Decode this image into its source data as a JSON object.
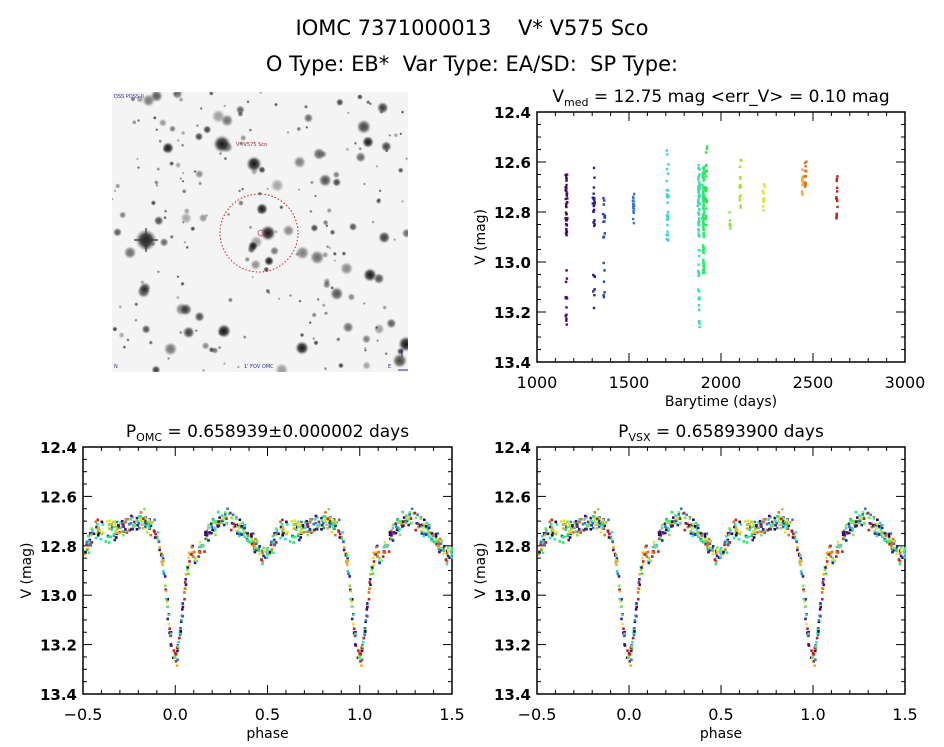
{
  "header": {
    "line1": "IOMC 7371000013    V* V575 Sco",
    "line2": "O Type: EB*  Var Type: EA/SD:  SP Type:"
  },
  "finder_chart": {
    "label_top_left": "DSS POSS-II",
    "label_target": "V* V575 Sco",
    "label_bottom_left": "N",
    "label_bottom_center": "1' FOV OMC",
    "label_bottom_right": "E",
    "circle_color": "#cc2222"
  },
  "chart_data": [
    {
      "id": "lightcurve",
      "type": "scatter",
      "title_main": "V",
      "title_sub": "med",
      "title_rest": " = 12.75 mag <err_V> = 0.10 mag",
      "xlabel": "Barytime (days)",
      "ylabel": "V (mag)",
      "xlim": [
        1000,
        3000
      ],
      "ylim": [
        13.4,
        12.4
      ],
      "y_inverted": true,
      "xticks": [
        1000,
        1500,
        2000,
        2500,
        3000
      ],
      "yticks": [
        "12.4",
        "12.6",
        "12.8",
        "13.0",
        "13.2",
        "13.4"
      ],
      "groups": [
        {
          "t": 1160,
          "color": "#4b0a63",
          "vmin": 12.65,
          "vmax": 12.9,
          "faint": [
            13.03,
            13.29
          ],
          "n": 40
        },
        {
          "t": 1310,
          "color": "#2a1fa0",
          "vmin": 12.62,
          "vmax": 12.87,
          "faint": [
            13.05,
            13.19
          ],
          "n": 22
        },
        {
          "t": 1365,
          "color": "#2244bb",
          "vmin": 12.72,
          "vmax": 12.91,
          "faint": [
            12.98,
            13.15
          ],
          "n": 12
        },
        {
          "t": 1525,
          "color": "#2b78d8",
          "vmin": 12.7,
          "vmax": 12.85,
          "faint": null,
          "n": 16
        },
        {
          "t": 1710,
          "color": "#38d4d8",
          "vmin": 12.55,
          "vmax": 12.92,
          "faint": null,
          "n": 28
        },
        {
          "t": 1880,
          "color": "#33e0b0",
          "vmin": 12.61,
          "vmax": 12.9,
          "faint": [
            12.95,
            13.28
          ],
          "n": 60
        },
        {
          "t": 1905,
          "color": "#22ee66",
          "vmin": 12.62,
          "vmax": 12.9,
          "faint": [
            12.92,
            13.05
          ],
          "n": 60
        },
        {
          "t": 1920,
          "color": "#33dd44",
          "vmin": 12.53,
          "vmax": 12.88,
          "faint": null,
          "n": 20
        },
        {
          "t": 2050,
          "color": "#88e044",
          "vmin": 12.8,
          "vmax": 12.88,
          "faint": null,
          "n": 6
        },
        {
          "t": 2105,
          "color": "#a8e030",
          "vmin": 12.57,
          "vmax": 12.8,
          "faint": null,
          "n": 14
        },
        {
          "t": 2235,
          "color": "#e0e430",
          "vmin": 12.68,
          "vmax": 12.8,
          "faint": null,
          "n": 12
        },
        {
          "t": 2445,
          "color": "#f0b020",
          "vmin": 12.63,
          "vmax": 12.74,
          "faint": null,
          "n": 14
        },
        {
          "t": 2460,
          "color": "#e07020",
          "vmin": 12.59,
          "vmax": 12.7,
          "faint": null,
          "n": 12
        },
        {
          "t": 2630,
          "color": "#c02020",
          "vmin": 12.65,
          "vmax": 12.85,
          "faint": null,
          "n": 14
        }
      ]
    },
    {
      "id": "phase_omc",
      "type": "scatter",
      "title_main": "P",
      "title_sub": "OMC",
      "title_rest": " = 0.658939±0.000002 days",
      "xlabel": "phase",
      "ylabel": "V (mag)",
      "xlim": [
        -0.5,
        1.5
      ],
      "ylim": [
        13.4,
        12.4
      ],
      "y_inverted": true,
      "xticks": [
        "-0.5",
        "0.0",
        "0.5",
        "1.0",
        "1.5"
      ],
      "yticks": [
        "12.4",
        "12.6",
        "12.8",
        "13.0",
        "13.2",
        "13.4"
      ],
      "period_days": 0.658939,
      "curve_model": {
        "maximum_mag": 12.72,
        "primary_min_mag": 13.25,
        "primary_width_phase": 0.06,
        "secondary_min_mag": 12.84,
        "scatter_mag": 0.06,
        "points_per_cycle": 420
      },
      "colors": [
        "#1a0a40",
        "#4b0a63",
        "#2a1fa0",
        "#2b78d8",
        "#38d4d8",
        "#33e0b0",
        "#22ee66",
        "#88e044",
        "#e0e430",
        "#f0b020",
        "#e07020",
        "#c02020"
      ]
    },
    {
      "id": "phase_vsx",
      "type": "scatter",
      "title_main": "P",
      "title_sub": "VSX",
      "title_rest": " = 0.65893900 days",
      "xlabel": "phase",
      "ylabel": "V (mag)",
      "xlim": [
        -0.5,
        1.5
      ],
      "ylim": [
        13.4,
        12.4
      ],
      "y_inverted": true,
      "xticks": [
        "-0.5",
        "0.0",
        "0.5",
        "1.0",
        "1.5"
      ],
      "yticks": [
        "12.4",
        "12.6",
        "12.8",
        "13.0",
        "13.2",
        "13.4"
      ],
      "period_days": 0.658939,
      "curve_model": {
        "maximum_mag": 12.72,
        "primary_min_mag": 13.25,
        "primary_width_phase": 0.06,
        "secondary_min_mag": 12.84,
        "scatter_mag": 0.06,
        "points_per_cycle": 420
      },
      "colors": [
        "#1a0a40",
        "#4b0a63",
        "#2a1fa0",
        "#2b78d8",
        "#38d4d8",
        "#33e0b0",
        "#22ee66",
        "#88e044",
        "#e0e430",
        "#f0b020",
        "#e07020",
        "#c02020"
      ]
    }
  ]
}
